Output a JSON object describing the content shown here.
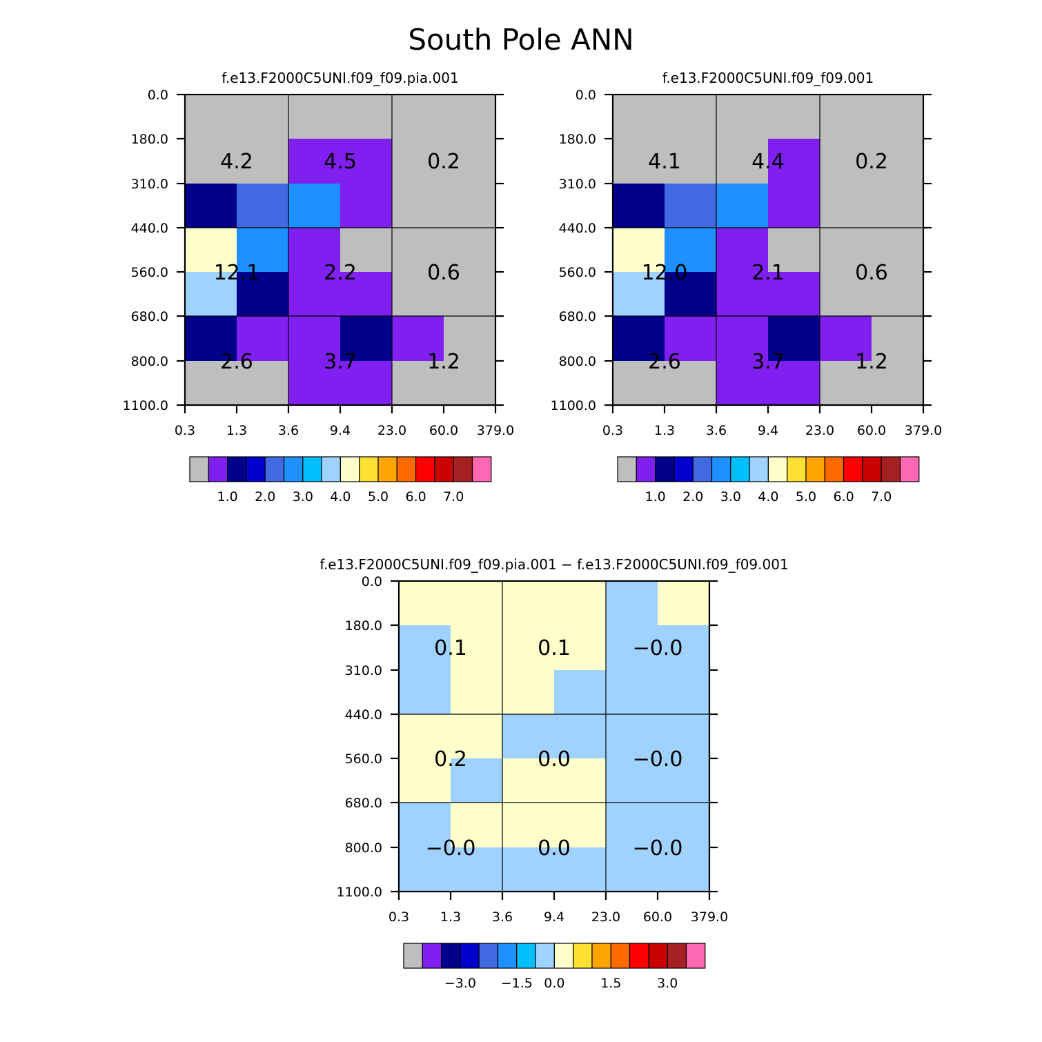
{
  "title": "South Pole ANN",
  "colors": {
    "bins": [
      "#bebebe",
      "#8020f0",
      "#00008b",
      "#0000cd",
      "#4169e1",
      "#1e90ff",
      "#00bfff",
      "#a0d2ff",
      "#ffffcc",
      "#ffe033",
      "#ffa500",
      "#ff6a00",
      "#ff0000",
      "#c80000",
      "#a52020",
      "#ff69b4"
    ]
  },
  "chart_data": [
    {
      "type": "heatmap",
      "name": "plot-pia",
      "title": "f.e13.F2000C5UNI.f09_f09.pia.001",
      "x_ticks": [
        "0.3",
        "1.3",
        "3.6",
        "9.4",
        "23.0",
        "60.0",
        "379.0"
      ],
      "y_ticks": [
        "0.0",
        "180.0",
        "310.0",
        "440.0",
        "560.0",
        "680.0",
        "800.0",
        "1100.0"
      ],
      "grid": [
        [
          0,
          0,
          0,
          0,
          0,
          0
        ],
        [
          0,
          0,
          1,
          1,
          0,
          0
        ],
        [
          2,
          4,
          5,
          1,
          0,
          0
        ],
        [
          8,
          5,
          1,
          0,
          0,
          0
        ],
        [
          7,
          2,
          1,
          1,
          0,
          0
        ],
        [
          2,
          1,
          1,
          2,
          1,
          0
        ],
        [
          0,
          0,
          1,
          1,
          0,
          0
        ]
      ],
      "box_labels": [
        [
          "4.2",
          "4.5",
          "0.2"
        ],
        [
          "12.1",
          "2.2",
          "0.6"
        ],
        [
          "2.6",
          "3.7",
          "1.2"
        ]
      ],
      "colorbar_labels": [
        "1.0",
        "2.0",
        "3.0",
        "4.0",
        "5.0",
        "6.0",
        "7.0"
      ]
    },
    {
      "type": "heatmap",
      "name": "plot-control",
      "title": "f.e13.F2000C5UNI.f09_f09.001",
      "x_ticks": [
        "0.3",
        "1.3",
        "3.6",
        "9.4",
        "23.0",
        "60.0",
        "379.0"
      ],
      "y_ticks": [
        "0.0",
        "180.0",
        "310.0",
        "440.0",
        "560.0",
        "680.0",
        "800.0",
        "1100.0"
      ],
      "grid": [
        [
          0,
          0,
          0,
          0,
          0,
          0
        ],
        [
          0,
          0,
          0,
          1,
          0,
          0
        ],
        [
          2,
          4,
          5,
          1,
          0,
          0
        ],
        [
          8,
          5,
          1,
          0,
          0,
          0
        ],
        [
          7,
          2,
          1,
          1,
          0,
          0
        ],
        [
          2,
          1,
          1,
          2,
          1,
          0
        ],
        [
          0,
          0,
          1,
          1,
          0,
          0
        ]
      ],
      "box_labels": [
        [
          "4.1",
          "4.4",
          "0.2"
        ],
        [
          "12.0",
          "2.1",
          "0.6"
        ],
        [
          "2.6",
          "3.7",
          "1.2"
        ]
      ],
      "colorbar_labels": [
        "1.0",
        "2.0",
        "3.0",
        "4.0",
        "5.0",
        "6.0",
        "7.0"
      ]
    },
    {
      "type": "heatmap",
      "name": "plot-difference",
      "title": "f.e13.F2000C5UNI.f09_f09.pia.001 − f.e13.F2000C5UNI.f09_f09.001",
      "x_ticks": [
        "0.3",
        "1.3",
        "3.6",
        "9.4",
        "23.0",
        "60.0",
        "379.0"
      ],
      "y_ticks": [
        "0.0",
        "180.0",
        "310.0",
        "440.0",
        "560.0",
        "680.0",
        "800.0",
        "1100.0"
      ],
      "grid": [
        [
          8,
          8,
          8,
          8,
          7,
          8
        ],
        [
          7,
          8,
          8,
          8,
          7,
          7
        ],
        [
          7,
          8,
          8,
          7,
          7,
          7
        ],
        [
          8,
          8,
          7,
          7,
          7,
          7
        ],
        [
          8,
          7,
          8,
          8,
          7,
          7
        ],
        [
          7,
          8,
          8,
          8,
          7,
          7
        ],
        [
          7,
          7,
          7,
          7,
          7,
          7
        ]
      ],
      "box_labels": [
        [
          "0.1",
          "0.1",
          "−0.0"
        ],
        [
          "0.2",
          "0.0",
          "−0.0"
        ],
        [
          "−0.0",
          "0.0",
          "−0.0"
        ]
      ],
      "colorbar_labels": [
        "−3.0",
        "−1.5",
        "0.0",
        "1.5",
        "3.0"
      ]
    }
  ]
}
